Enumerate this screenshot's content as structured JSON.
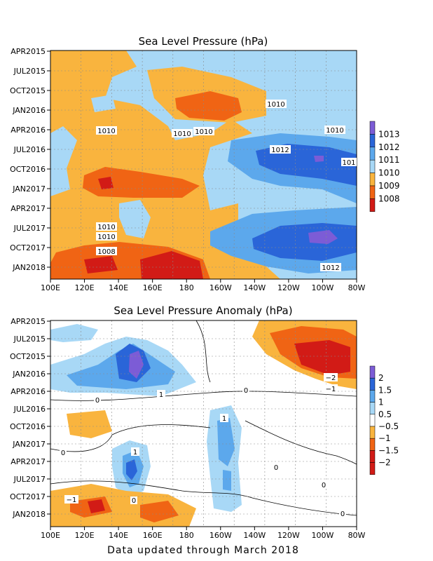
{
  "colors": {
    "c1008": "#d21b16",
    "c1009": "#f06414",
    "c1010": "#f9b43e",
    "c1011": "#a8d8f6",
    "c1012": "#5ca8ec",
    "c1013": "#2a65d8",
    "c1014": "#7c5cd6",
    "a_n2": "#d21b16",
    "a_n15": "#f06414",
    "a_n1": "#f9b43e",
    "a_zero": "#ffffff",
    "a_05": "#a8d8f6",
    "a_1": "#5ca8ec",
    "a_15": "#2a65d8",
    "a_2": "#7c5cd6"
  },
  "chart_data": [
    {
      "type": "heatmap",
      "title": "Sea Level Pressure (hPa)",
      "x_ticks": [
        "100E",
        "120E",
        "140E",
        "160E",
        "180",
        "160W",
        "140W",
        "120W",
        "100W",
        "80W"
      ],
      "y_ticks": [
        "APR2015",
        "JUL2015",
        "OCT2015",
        "JAN2016",
        "APR2016",
        "JUL2016",
        "OCT2016",
        "JAN2017",
        "APR2017",
        "JUL2017",
        "OCT2017",
        "JAN2018"
      ],
      "colorbar": {
        "levels": [
          "1013",
          "1012",
          "1011",
          "1010",
          "1009",
          "1008"
        ]
      },
      "contour_labels": [
        "1010",
        "1010",
        "1010",
        "1010",
        "1010",
        "1012",
        "101",
        "1010",
        "1010",
        "1008",
        "1012"
      ],
      "grid": true
    },
    {
      "type": "heatmap",
      "title": "Sea Level Pressure Anomaly (hPa)",
      "x_ticks": [
        "100E",
        "120E",
        "140E",
        "160E",
        "180",
        "160W",
        "140W",
        "120W",
        "100W",
        "80W"
      ],
      "y_ticks": [
        "APR2015",
        "JUL2015",
        "OCT2015",
        "JAN2016",
        "APR2016",
        "JUL2016",
        "OCT2016",
        "JAN2017",
        "APR2017",
        "JUL2017",
        "OCT2017",
        "JAN2018"
      ],
      "colorbar": {
        "levels": [
          "2",
          "1.5",
          "1",
          "0.5",
          "−0.5",
          "−1",
          "−1.5",
          "−2"
        ]
      },
      "contour_labels": [
        "1",
        "0",
        "−2",
        "−1",
        "0",
        "1",
        "1",
        "0",
        "0",
        "0",
        "0",
        "−1",
        "0"
      ],
      "grid": true
    }
  ],
  "footer": "Data updated through March 2018"
}
